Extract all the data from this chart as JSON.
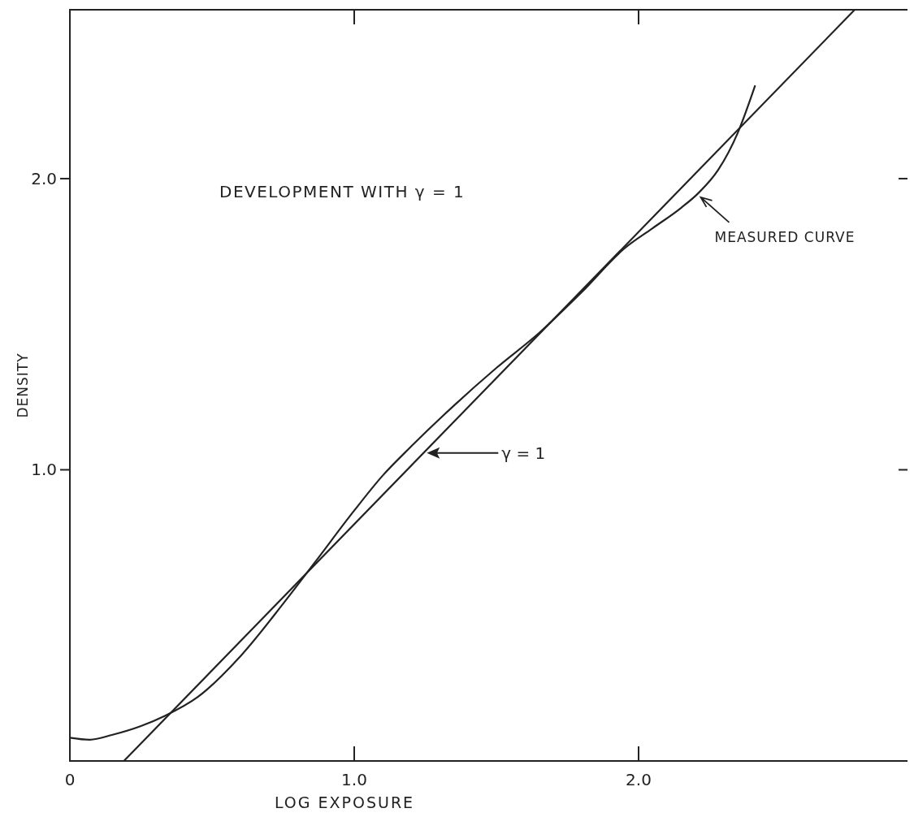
{
  "chart_data": {
    "type": "line",
    "xlabel": "LOG EXPOSURE",
    "ylabel": "DENSITY",
    "annotations": [
      "DEVELOPMENT WITH γ = 1"
    ],
    "xlim": [
      0,
      2.96
    ],
    "ylim": [
      0,
      2.58
    ],
    "xticks": [
      0,
      {
        "value": 1,
        "label": "1.0"
      },
      {
        "value": 2,
        "label": "2.0"
      }
    ],
    "yticks": [
      {
        "value": 1,
        "label": "1.0"
      },
      {
        "value": 2,
        "label": "2.0"
      }
    ],
    "grid": false,
    "marker": "none",
    "line_style": "solid",
    "series": [
      {
        "name": "γ = 1",
        "color": "#222222",
        "x": [
          0.19,
          2.76
        ],
        "values": [
          0,
          2.58
        ]
      },
      {
        "name": "MEASURED CURVE",
        "color": "#222222",
        "x": [
          0,
          0.07,
          0.15,
          0.25,
          0.334,
          0.45,
          0.6,
          0.75,
          0.86,
          1.0,
          1.1,
          1.2,
          1.35,
          1.5,
          1.65,
          1.8,
          1.95,
          2.05,
          2.15,
          2.21,
          2.28,
          2.35,
          2.41
        ],
        "values": [
          0.08,
          0.073,
          0.09,
          0.12,
          0.155,
          0.22,
          0.36,
          0.54,
          0.68,
          0.86,
          0.98,
          1.08,
          1.22,
          1.35,
          1.47,
          1.61,
          1.76,
          1.83,
          1.9,
          1.95,
          2.03,
          2.16,
          2.32
        ]
      }
    ]
  }
}
